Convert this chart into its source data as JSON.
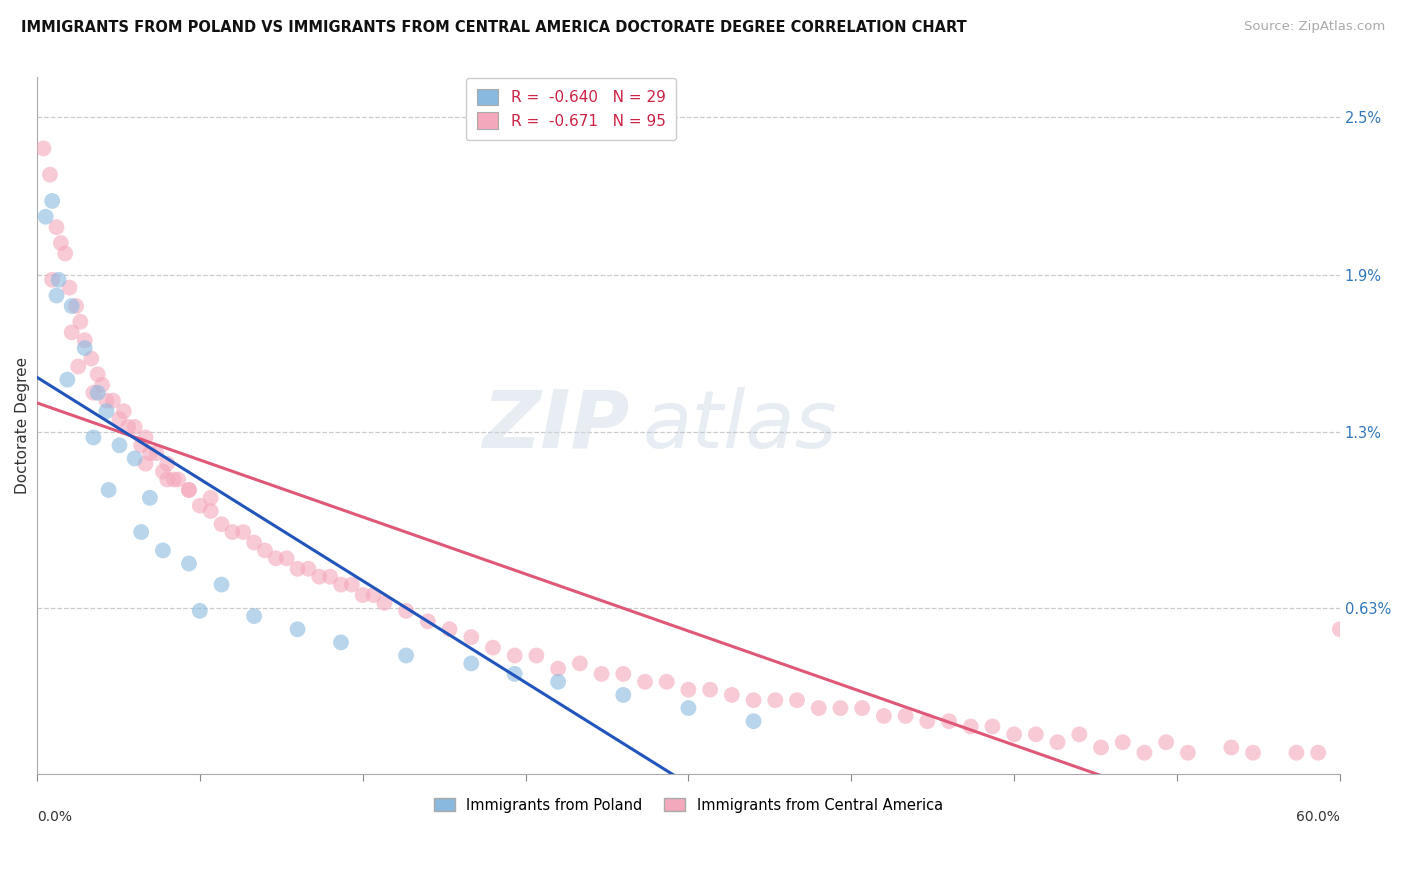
{
  "title": "IMMIGRANTS FROM POLAND VS IMMIGRANTS FROM CENTRAL AMERICA DOCTORATE DEGREE CORRELATION CHART",
  "source": "Source: ZipAtlas.com",
  "ylabel": "Doctorate Degree",
  "right_ytick_vals": [
    0.0,
    0.63,
    1.3,
    1.9,
    2.5
  ],
  "right_ytick_labels": [
    "",
    "0.63%",
    "1.3%",
    "1.9%",
    "2.5%"
  ],
  "legend_line1": "R =  -0.640   N = 29",
  "legend_line2": "R =  -0.671   N = 95",
  "legend_bottom_1": "Immigrants from Poland",
  "legend_bottom_2": "Immigrants from Central America",
  "poland_color": "#8ab9e0",
  "central_america_color": "#f4a8bb",
  "poland_line_color": "#2255bb",
  "central_america_line_color": "#e05878",
  "legend_text_color": "#cc2244",
  "xlim": [
    0,
    60
  ],
  "ylim": [
    0,
    2.65
  ],
  "grid_color": "#cccccc",
  "background_color": "#ffffff",
  "poland_x": [
    0.4,
    0.7,
    1.0,
    0.9,
    1.6,
    2.2,
    1.4,
    2.8,
    3.2,
    2.6,
    3.8,
    4.5,
    3.3,
    5.2,
    4.8,
    5.8,
    7.0,
    8.5,
    7.5,
    10.0,
    12.0,
    14.0,
    17.0,
    20.0,
    22.0,
    24.0,
    27.0,
    30.0,
    33.0
  ],
  "poland_y": [
    2.12,
    2.18,
    1.88,
    1.82,
    1.78,
    1.62,
    1.5,
    1.45,
    1.38,
    1.28,
    1.25,
    1.2,
    1.08,
    1.05,
    0.92,
    0.85,
    0.8,
    0.72,
    0.62,
    0.6,
    0.55,
    0.5,
    0.45,
    0.42,
    0.38,
    0.35,
    0.3,
    0.25,
    0.2
  ],
  "ca_x": [
    0.3,
    0.6,
    0.9,
    1.1,
    1.3,
    0.7,
    1.5,
    1.8,
    2.0,
    1.6,
    2.2,
    2.5,
    2.8,
    1.9,
    3.0,
    3.5,
    2.6,
    4.0,
    3.2,
    4.5,
    3.8,
    5.0,
    4.2,
    5.5,
    4.8,
    6.0,
    5.2,
    6.5,
    5.8,
    7.0,
    6.3,
    8.0,
    7.5,
    9.0,
    8.5,
    10.0,
    9.5,
    11.0,
    10.5,
    12.0,
    11.5,
    13.0,
    12.5,
    14.0,
    13.5,
    15.0,
    14.5,
    16.0,
    15.5,
    17.0,
    18.0,
    19.0,
    20.0,
    21.0,
    22.0,
    24.0,
    26.0,
    28.0,
    30.0,
    33.0,
    36.0,
    40.0,
    44.0,
    48.0,
    52.0,
    55.0,
    58.0,
    42.0,
    46.0,
    50.0,
    38.0,
    34.0,
    32.0,
    60.0,
    25.0,
    27.0,
    29.0,
    31.0,
    35.0,
    37.0,
    39.0,
    41.0,
    43.0,
    45.0,
    47.0,
    49.0,
    51.0,
    53.0,
    56.0,
    59.0,
    8.0,
    7.0,
    6.0,
    5.0,
    23.0
  ],
  "ca_y": [
    2.38,
    2.28,
    2.08,
    2.02,
    1.98,
    1.88,
    1.85,
    1.78,
    1.72,
    1.68,
    1.65,
    1.58,
    1.52,
    1.55,
    1.48,
    1.42,
    1.45,
    1.38,
    1.42,
    1.32,
    1.35,
    1.28,
    1.32,
    1.22,
    1.25,
    1.18,
    1.22,
    1.12,
    1.15,
    1.08,
    1.12,
    1.0,
    1.02,
    0.92,
    0.95,
    0.88,
    0.92,
    0.82,
    0.85,
    0.78,
    0.82,
    0.75,
    0.78,
    0.72,
    0.75,
    0.68,
    0.72,
    0.65,
    0.68,
    0.62,
    0.58,
    0.55,
    0.52,
    0.48,
    0.45,
    0.4,
    0.38,
    0.35,
    0.32,
    0.28,
    0.25,
    0.22,
    0.18,
    0.15,
    0.12,
    0.1,
    0.08,
    0.2,
    0.15,
    0.12,
    0.25,
    0.28,
    0.3,
    0.55,
    0.42,
    0.38,
    0.35,
    0.32,
    0.28,
    0.25,
    0.22,
    0.2,
    0.18,
    0.15,
    0.12,
    0.1,
    0.08,
    0.08,
    0.08,
    0.08,
    1.05,
    1.08,
    1.12,
    1.18,
    0.45
  ]
}
